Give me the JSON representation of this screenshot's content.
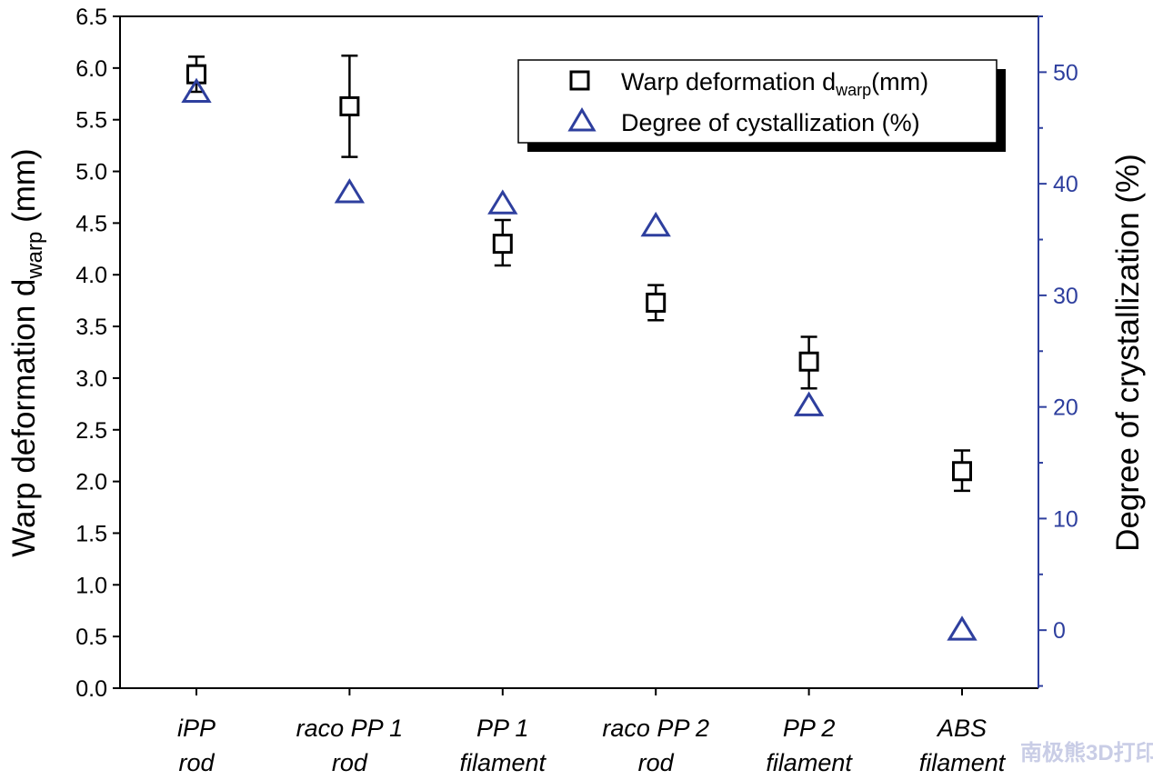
{
  "chart_data": {
    "type": "scatter",
    "categories": [
      [
        "iPP",
        "rod"
      ],
      [
        "raco PP 1",
        "rod"
      ],
      [
        "PP 1",
        "filament"
      ],
      [
        "raco PP 2",
        "rod"
      ],
      [
        "PP 2",
        "filament"
      ],
      [
        "ABS",
        "filament"
      ]
    ],
    "ylabel_left": {
      "main": "Warp deformation d",
      "sub": "warp",
      "unit": " (mm)"
    },
    "ylabel_right": "Degree of crystallization (%)",
    "ylim_left": [
      0,
      6.5
    ],
    "ylim_right": [
      -5.2,
      55
    ],
    "left_ticks": [
      "0.0",
      "0.5",
      "1.0",
      "1.5",
      "2.0",
      "2.5",
      "3.0",
      "3.5",
      "4.0",
      "4.5",
      "5.0",
      "5.5",
      "6.0",
      "6.5"
    ],
    "right_ticks": [
      "0",
      "10",
      "20",
      "30",
      "40",
      "50"
    ],
    "series": [
      {
        "name": "Warp deformation d_warp (mm)",
        "axis": "left",
        "marker": "square",
        "color": "#000000",
        "values": [
          5.94,
          5.63,
          4.3,
          3.73,
          3.16,
          2.1
        ],
        "err_low": [
          5.77,
          5.14,
          4.09,
          3.56,
          2.9,
          1.91
        ],
        "err_high": [
          6.11,
          6.12,
          4.53,
          3.9,
          3.4,
          2.3
        ]
      },
      {
        "name": "Degree of cystallization (%)",
        "axis": "right",
        "marker": "triangle",
        "color": "#2e3f9e",
        "values": [
          48.2,
          39.2,
          38.2,
          36.2,
          20.1,
          0
        ]
      }
    ],
    "legend": {
      "placement": "top-right",
      "entry1": {
        "main": "Warp deformation d",
        "sub": "warp",
        "unit": "(mm)"
      },
      "entry2": "Degree of cystallization (%)"
    },
    "grid": false
  },
  "watermark": "南极熊3D打印"
}
